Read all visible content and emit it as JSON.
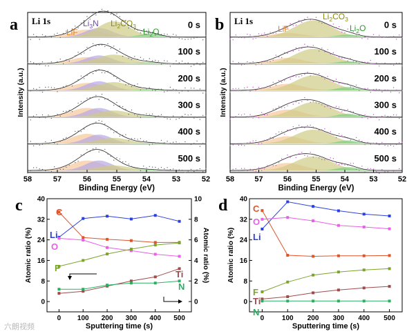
{
  "watermark": "六朗视频",
  "colors": {
    "LiF": "#e8801a",
    "Li3N": "#7a3fc8",
    "Li2CO3": "#8c8a10",
    "Li2O": "#2a9a2a",
    "fill_LiF": "#f6c79a",
    "fill_Li3N": "#b6a8e6",
    "fill_Li2CO3": "#cfcc86",
    "fill_Li2O": "#7fd07f",
    "C": "#e0542a",
    "Li": "#2b3fe0",
    "O": "#e860e8",
    "F": "#7aa52a",
    "Ti": "#a04a4a",
    "N": "#28b060"
  },
  "chart_data": [
    {
      "panel": "a",
      "type": "area",
      "title": "Li 1s",
      "xlabel": "Binding Energy (eV)",
      "ylabel": "Intensity (a.u.)",
      "xlim": [
        58,
        52
      ],
      "x_reversed": true,
      "xticks": [
        58,
        57,
        56,
        55,
        54,
        53,
        52
      ],
      "peak_labels": [
        "LiF",
        "Li3N",
        "Li2CO3",
        "Li2O"
      ],
      "times": [
        "0 s",
        "100 s",
        "200 s",
        "300 s",
        "400 s",
        "500 s"
      ],
      "components": [
        {
          "name": "LiF",
          "peaks": [
            {
              "center": 56.0,
              "width": 0.55,
              "height": 0.45
            },
            {
              "center": 56.0,
              "width": 0.55,
              "height": 0.4
            },
            {
              "center": 56.0,
              "width": 0.55,
              "height": 0.45
            },
            {
              "center": 56.0,
              "width": 0.55,
              "height": 0.55
            },
            {
              "center": 56.0,
              "width": 0.55,
              "height": 0.6
            },
            {
              "center": 56.0,
              "width": 0.55,
              "height": 0.6
            }
          ]
        },
        {
          "name": "Li3N",
          "peaks": [
            {
              "center": 55.6,
              "width": 0.45,
              "height": 0.55
            },
            {
              "center": 55.6,
              "width": 0.45,
              "height": 0.5
            },
            {
              "center": 55.6,
              "width": 0.45,
              "height": 0.55
            },
            {
              "center": 55.6,
              "width": 0.45,
              "height": 0.55
            },
            {
              "center": 55.6,
              "width": 0.45,
              "height": 0.55
            },
            {
              "center": 55.6,
              "width": 0.45,
              "height": 0.6
            }
          ]
        },
        {
          "name": "Li2CO3",
          "peaks": [
            {
              "center": 55.1,
              "width": 0.55,
              "height": 0.95
            },
            {
              "center": 55.1,
              "width": 0.55,
              "height": 0.55
            },
            {
              "center": 55.1,
              "width": 0.55,
              "height": 0.5
            },
            {
              "center": 55.1,
              "width": 0.55,
              "height": 0.4
            },
            {
              "center": 55.1,
              "width": 0.55,
              "height": 0.35
            },
            {
              "center": 55.1,
              "width": 0.55,
              "height": 0.3
            }
          ]
        },
        {
          "name": "Li2O",
          "peaks": [
            {
              "center": 53.9,
              "width": 0.35,
              "height": 0.2
            },
            {
              "center": 53.9,
              "width": 0.35,
              "height": 0.08
            },
            {
              "center": 53.9,
              "width": 0.35,
              "height": 0.06
            },
            {
              "center": 53.9,
              "width": 0.35,
              "height": 0.05
            },
            {
              "center": 53.9,
              "width": 0.35,
              "height": 0.05
            },
            {
              "center": 53.9,
              "width": 0.35,
              "height": 0.04
            }
          ]
        }
      ]
    },
    {
      "panel": "b",
      "type": "area",
      "title": "Li 1s",
      "xlabel": "Binding Energy (eV)",
      "ylabel": "Intensity (a.u.)",
      "xlim": [
        58,
        52
      ],
      "x_reversed": true,
      "xticks": [
        58,
        57,
        56,
        55,
        54,
        53,
        52
      ],
      "peak_labels": [
        "LiF",
        "Li2CO3",
        "Li2O"
      ],
      "times": [
        "0 s",
        "100 s",
        "200 s",
        "300 s",
        "400 s",
        "500 s"
      ],
      "components": [
        {
          "name": "LiF",
          "peaks": [
            {
              "center": 56.0,
              "width": 0.55,
              "height": 0.25
            },
            {
              "center": 56.0,
              "width": 0.55,
              "height": 0.35
            },
            {
              "center": 56.0,
              "width": 0.55,
              "height": 0.4
            },
            {
              "center": 56.0,
              "width": 0.55,
              "height": 0.45
            },
            {
              "center": 56.0,
              "width": 0.55,
              "height": 0.45
            },
            {
              "center": 56.0,
              "width": 0.55,
              "height": 0.45
            }
          ]
        },
        {
          "name": "Li2CO3",
          "peaks": [
            {
              "center": 55.1,
              "width": 0.65,
              "height": 1.0
            },
            {
              "center": 55.1,
              "width": 0.65,
              "height": 0.9
            },
            {
              "center": 55.1,
              "width": 0.65,
              "height": 0.9
            },
            {
              "center": 55.1,
              "width": 0.65,
              "height": 0.9
            },
            {
              "center": 55.1,
              "width": 0.65,
              "height": 0.85
            },
            {
              "center": 55.1,
              "width": 0.65,
              "height": 0.85
            }
          ]
        },
        {
          "name": "Li2O",
          "peaks": [
            {
              "center": 53.9,
              "width": 0.35,
              "height": 0.15
            },
            {
              "center": 53.9,
              "width": 0.35,
              "height": 0.15
            },
            {
              "center": 53.9,
              "width": 0.35,
              "height": 0.2
            },
            {
              "center": 53.9,
              "width": 0.35,
              "height": 0.2
            },
            {
              "center": 53.9,
              "width": 0.35,
              "height": 0.2
            },
            {
              "center": 53.9,
              "width": 0.35,
              "height": 0.2
            }
          ]
        }
      ]
    },
    {
      "panel": "c",
      "type": "line",
      "xlabel": "Sputtering time (s)",
      "ylabel": "Atomic ratio (%)",
      "ylabel_right": "Atomic ratio (%)",
      "xlim": [
        -50,
        550
      ],
      "ylim": [
        -4,
        40
      ],
      "ylim_right": [
        -1,
        10
      ],
      "xticks": [
        0,
        100,
        200,
        300,
        400,
        500
      ],
      "yticks": [
        0,
        8,
        16,
        24,
        32,
        40
      ],
      "yticks_right": [
        0,
        2,
        4,
        6,
        8,
        10
      ],
      "x": [
        0,
        100,
        200,
        300,
        400,
        500
      ],
      "series": [
        {
          "name": "C",
          "axis": "left",
          "values": [
            34.8,
            24.9,
            24.2,
            23.7,
            23.0,
            23.0
          ]
        },
        {
          "name": "Li",
          "axis": "left",
          "values": [
            25.0,
            32.3,
            33.2,
            32.1,
            33.5,
            31.2
          ]
        },
        {
          "name": "O",
          "axis": "left",
          "values": [
            24.6,
            23.9,
            21.0,
            19.8,
            18.4,
            17.6
          ]
        },
        {
          "name": "F",
          "axis": "left",
          "values": [
            13.7,
            16.0,
            18.5,
            20.4,
            22.0,
            22.8
          ]
        },
        {
          "name": "Ti",
          "axis": "right",
          "values": [
            0.8,
            1.0,
            1.5,
            2.0,
            2.4,
            3.2
          ]
        },
        {
          "name": "N",
          "axis": "right",
          "values": [
            1.2,
            1.2,
            1.6,
            1.8,
            1.8,
            2.0
          ]
        }
      ]
    },
    {
      "panel": "d",
      "type": "line",
      "xlabel": "Sputtering time (s)",
      "ylabel": "Atomic ratio (%)",
      "xlim": [
        -50,
        550
      ],
      "ylim": [
        -4,
        40
      ],
      "xticks": [
        0,
        100,
        200,
        300,
        400,
        500
      ],
      "yticks": [
        0,
        8,
        16,
        24,
        32,
        40
      ],
      "x": [
        0,
        100,
        200,
        300,
        400,
        500
      ],
      "series": [
        {
          "name": "C",
          "values": [
            35.4,
            18.0,
            17.6,
            17.8,
            17.8,
            17.9
          ]
        },
        {
          "name": "Li",
          "values": [
            28.2,
            38.8,
            37.0,
            35.3,
            34.0,
            33.3
          ]
        },
        {
          "name": "O",
          "values": [
            32.0,
            32.7,
            31.4,
            29.6,
            29.0,
            28.3
          ]
        },
        {
          "name": "F",
          "values": [
            3.8,
            7.6,
            10.3,
            11.5,
            12.3,
            12.8
          ]
        },
        {
          "name": "Ti",
          "values": [
            1.0,
            1.9,
            3.4,
            4.5,
            5.3,
            5.9
          ]
        },
        {
          "name": "N",
          "values": [
            0.2,
            0.2,
            0.2,
            0.2,
            0.2,
            0.2
          ]
        }
      ]
    }
  ]
}
